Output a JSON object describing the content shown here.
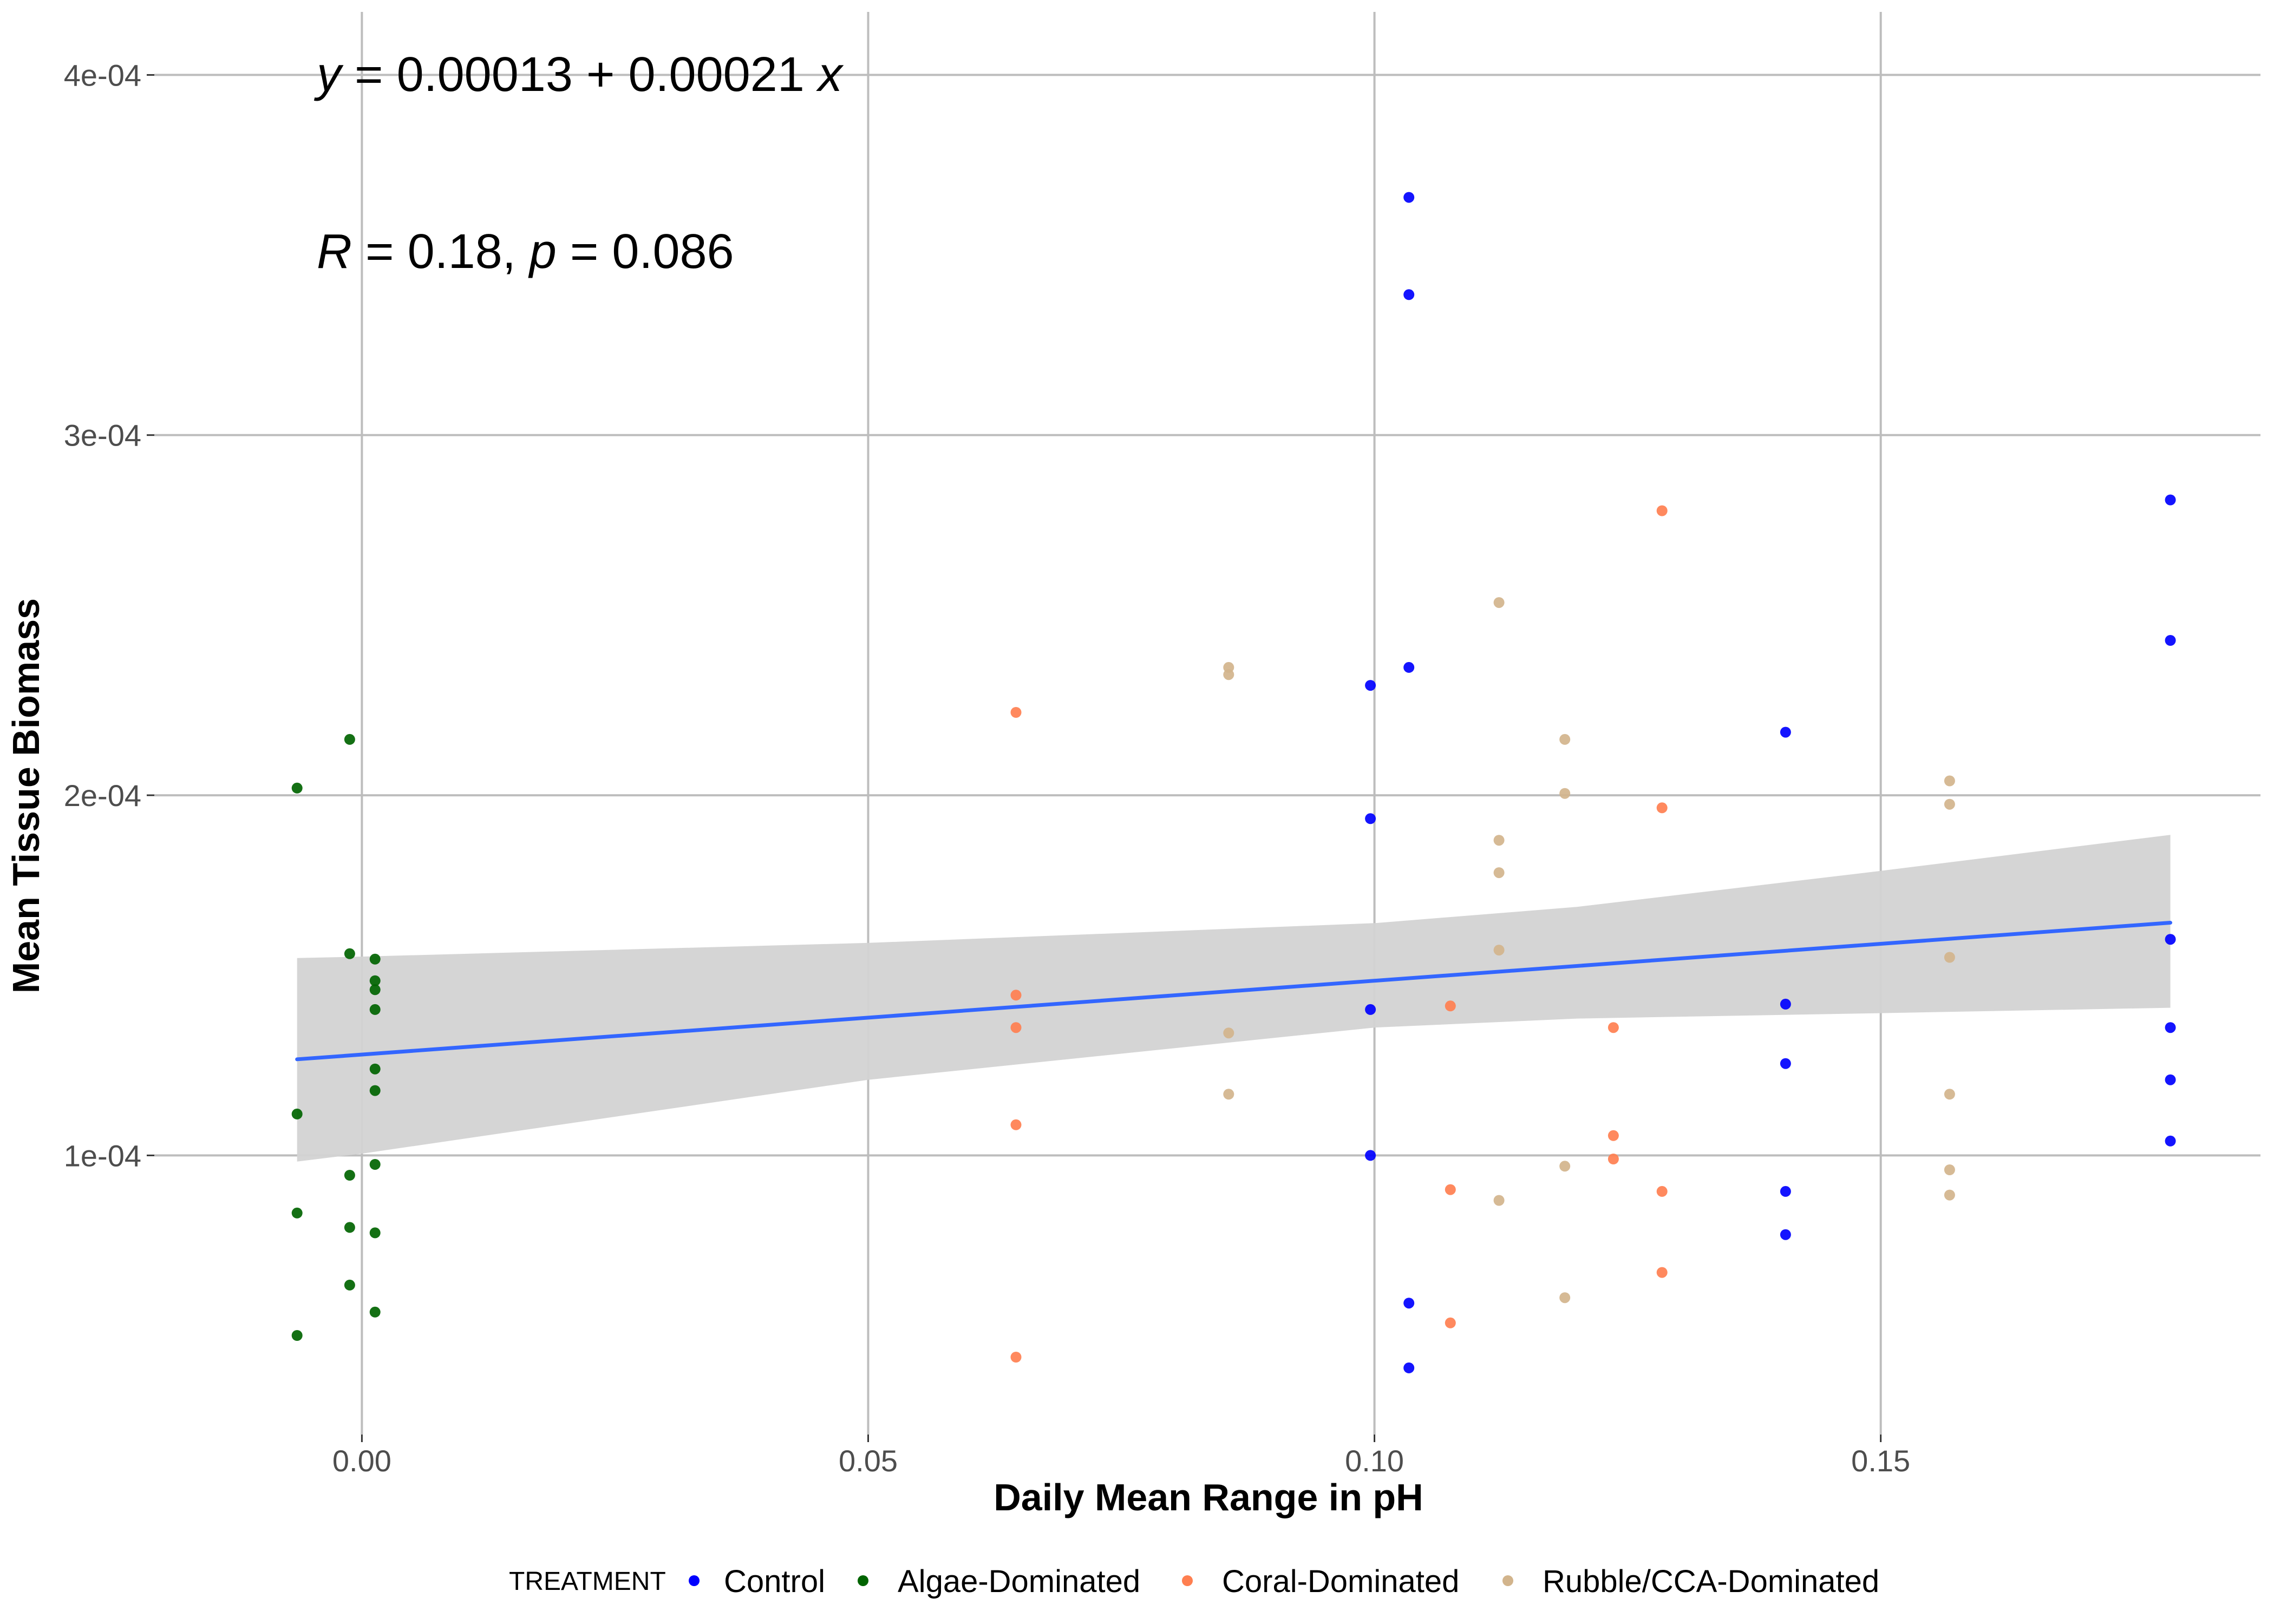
{
  "chart_data": {
    "type": "scatter",
    "xlabel": "Daily Mean Range in pH",
    "ylabel": "Mean Tissue Biomass",
    "xlim": [
      -0.0205,
      0.1875
    ],
    "ylim": [
      2.25e-05,
      0.0004175
    ],
    "x_ticks": [
      0.0,
      0.05,
      0.1,
      0.15
    ],
    "x_tick_labels": [
      "0.00",
      "0.05",
      "0.10",
      "0.15"
    ],
    "y_ticks": [
      0.0001,
      0.0002,
      0.0003,
      0.0004
    ],
    "y_tick_labels": [
      "1e-04",
      "2e-04",
      "3e-04",
      "4e-04"
    ],
    "grid": true,
    "annotations": {
      "equation": {
        "y": "y",
        "eq": " = 0.00013 + 0.00021 ",
        "x": "x"
      },
      "stats": {
        "r": "R",
        "r_val": " = 0.18, ",
        "p": "p",
        "p_val": " = 0.086"
      }
    },
    "legend": {
      "position": "bottom",
      "title": "TREATMENT",
      "entries": [
        {
          "label": "Control",
          "color": "#0000ff"
        },
        {
          "label": "Algae-Dominated",
          "color": "#006400"
        },
        {
          "label": "Coral-Dominated",
          "color": "#ff7f50"
        },
        {
          "label": "Rubble/CCA-Dominated",
          "color": "#d2b48c"
        }
      ]
    },
    "fit": {
      "intercept": 0.000128,
      "slope": 0.000205,
      "x_range": [
        -0.0064,
        0.1786
      ],
      "line_color": "#3366ff",
      "band_color": "#d3d3d3",
      "band": [
        {
          "x": -0.0064,
          "lo": 9.83e-05,
          "hi": 0.0001548
        },
        {
          "x": 0.0,
          "lo": 0.0001005,
          "hi": 0.0001552
        },
        {
          "x": 0.05,
          "lo": 0.000121,
          "hi": 0.000159
        },
        {
          "x": 0.1,
          "lo": 0.0001355,
          "hi": 0.0001645
        },
        {
          "x": 0.12,
          "lo": 0.000138,
          "hi": 0.000169
        },
        {
          "x": 0.15,
          "lo": 0.0001395,
          "hi": 0.000179
        },
        {
          "x": 0.1786,
          "lo": 0.000141,
          "hi": 0.000189
        }
      ]
    },
    "series": [
      {
        "name": "Control",
        "color": "#0000ff",
        "points": [
          [
            0.0996,
            0.0001935
          ],
          [
            0.0996,
            0.0002305
          ],
          [
            0.0996,
            0.0001405
          ],
          [
            0.0996,
            0.0001
          ],
          [
            0.1034,
            0.000366
          ],
          [
            0.1034,
            0.000339
          ],
          [
            0.1034,
            0.0002355
          ],
          [
            0.1034,
            5.9e-05
          ],
          [
            0.1034,
            4.1e-05
          ],
          [
            0.1406,
            0.0002175
          ],
          [
            0.1406,
            0.000142
          ],
          [
            0.1406,
            0.0001255
          ],
          [
            0.1406,
            9e-05
          ],
          [
            0.1406,
            7.8e-05
          ],
          [
            0.1786,
            0.000282
          ],
          [
            0.1786,
            0.000243
          ],
          [
            0.1786,
            0.00016
          ],
          [
            0.1786,
            0.0001355
          ],
          [
            0.1786,
            0.000121
          ],
          [
            0.1786,
            0.000104
          ]
        ]
      },
      {
        "name": "Algae-Dominated",
        "color": "#006400",
        "points": [
          [
            -0.0064,
            0.000202
          ],
          [
            -0.0064,
            0.0001115
          ],
          [
            -0.0064,
            8.4e-05
          ],
          [
            -0.0064,
            5e-05
          ],
          [
            -0.0012,
            0.0002155
          ],
          [
            -0.0012,
            0.000156
          ],
          [
            -0.0012,
            9.45e-05
          ],
          [
            -0.0012,
            8e-05
          ],
          [
            -0.0012,
            6.4e-05
          ],
          [
            0.0013,
            0.0001545
          ],
          [
            0.0013,
            0.0001485
          ],
          [
            0.0013,
            0.000146
          ],
          [
            0.0013,
            0.0001405
          ],
          [
            0.0013,
            0.000124
          ],
          [
            0.0013,
            0.000118
          ],
          [
            0.0013,
            9.75e-05
          ],
          [
            0.0013,
            7.85e-05
          ],
          [
            0.0013,
            5.65e-05
          ]
        ]
      },
      {
        "name": "Coral-Dominated",
        "color": "#ff7f50",
        "points": [
          [
            0.0646,
            0.000223
          ],
          [
            0.0646,
            0.0001445
          ],
          [
            0.0646,
            0.0001355
          ],
          [
            0.0646,
            0.0001085
          ],
          [
            0.0646,
            4.4e-05
          ],
          [
            0.1075,
            0.0001415
          ],
          [
            0.1075,
            9.05e-05
          ],
          [
            0.1075,
            5.35e-05
          ],
          [
            0.1236,
            0.0001355
          ],
          [
            0.1236,
            0.0001055
          ],
          [
            0.1236,
            9.9e-05
          ],
          [
            0.1284,
            0.000279
          ],
          [
            0.1284,
            0.0001965
          ],
          [
            0.1284,
            9e-05
          ],
          [
            0.1284,
            6.75e-05
          ]
        ]
      },
      {
        "name": "Rubble/CCA-Dominated",
        "color": "#d2b48c",
        "points": [
          [
            0.0856,
            0.0002355
          ],
          [
            0.0856,
            0.0002335
          ],
          [
            0.0856,
            0.000134
          ],
          [
            0.0856,
            0.000117
          ],
          [
            0.1123,
            0.0002535
          ],
          [
            0.1123,
            0.0001875
          ],
          [
            0.1123,
            0.0001785
          ],
          [
            0.1123,
            0.000157
          ],
          [
            0.1123,
            8.75e-05
          ],
          [
            0.1188,
            0.0002155
          ],
          [
            0.1188,
            0.0002005
          ],
          [
            0.1188,
            9.7e-05
          ],
          [
            0.1188,
            6.05e-05
          ],
          [
            0.1568,
            0.000204
          ],
          [
            0.1568,
            0.0001975
          ],
          [
            0.1568,
            0.000155
          ],
          [
            0.1568,
            0.000117
          ],
          [
            0.1568,
            9.6e-05
          ],
          [
            0.1568,
            8.9e-05
          ]
        ]
      }
    ]
  }
}
